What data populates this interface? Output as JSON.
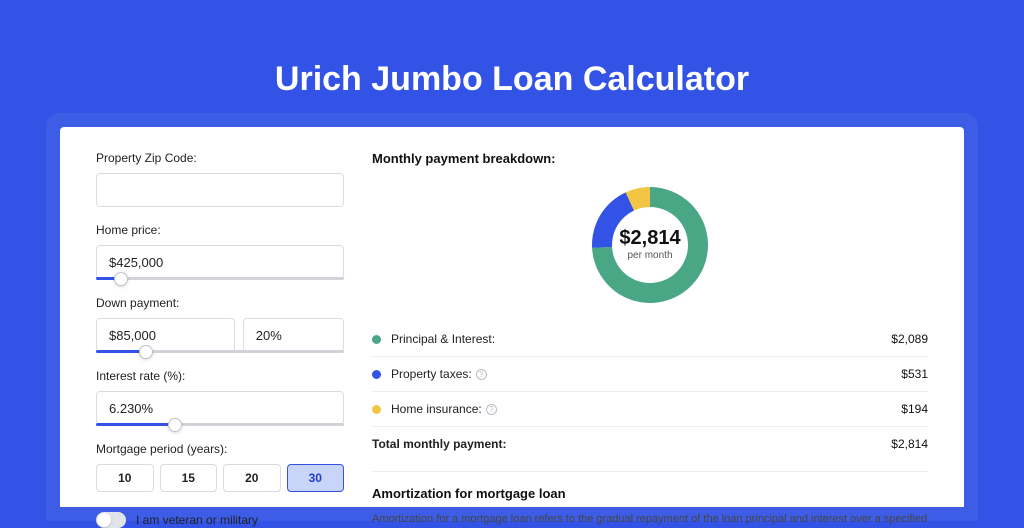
{
  "page": {
    "title": "Urich Jumbo Loan Calculator",
    "background_color": "#3353e7"
  },
  "form": {
    "zip": {
      "label": "Property Zip Code:",
      "value": ""
    },
    "home_price": {
      "label": "Home price:",
      "value": "$425,000",
      "slider_pct": 10
    },
    "down_payment": {
      "label": "Down payment:",
      "amount": "$85,000",
      "pct": "20%",
      "slider_pct": 20
    },
    "interest_rate": {
      "label": "Interest rate (%):",
      "value": "6.230%",
      "slider_pct": 32
    },
    "mortgage_period": {
      "label": "Mortgage period (years):",
      "options": [
        "10",
        "15",
        "20",
        "30"
      ],
      "selected": "30"
    },
    "veteran": {
      "label": "I am veteran or military",
      "checked": false
    }
  },
  "breakdown": {
    "title": "Monthly payment breakdown:",
    "donut": {
      "center_amount": "$2,814",
      "center_label": "per month",
      "slices": [
        {
          "label": "Principal & Interest:",
          "value": "$2,089",
          "color": "#49a786",
          "fraction": 0.742,
          "has_info": false
        },
        {
          "label": "Property taxes:",
          "value": "$531",
          "color": "#3353e7",
          "fraction": 0.189,
          "has_info": true
        },
        {
          "label": "Home insurance:",
          "value": "$194",
          "color": "#f2c545",
          "fraction": 0.069,
          "has_info": true
        }
      ],
      "inner_radius": 38,
      "outer_radius": 58,
      "background_color": "#ffffff"
    },
    "total": {
      "label": "Total monthly payment:",
      "value": "$2,814"
    }
  },
  "amortization": {
    "title": "Amortization for mortgage loan",
    "text": "Amortization for a mortgage loan refers to the gradual repayment of the loan principal and interest over a specified"
  }
}
